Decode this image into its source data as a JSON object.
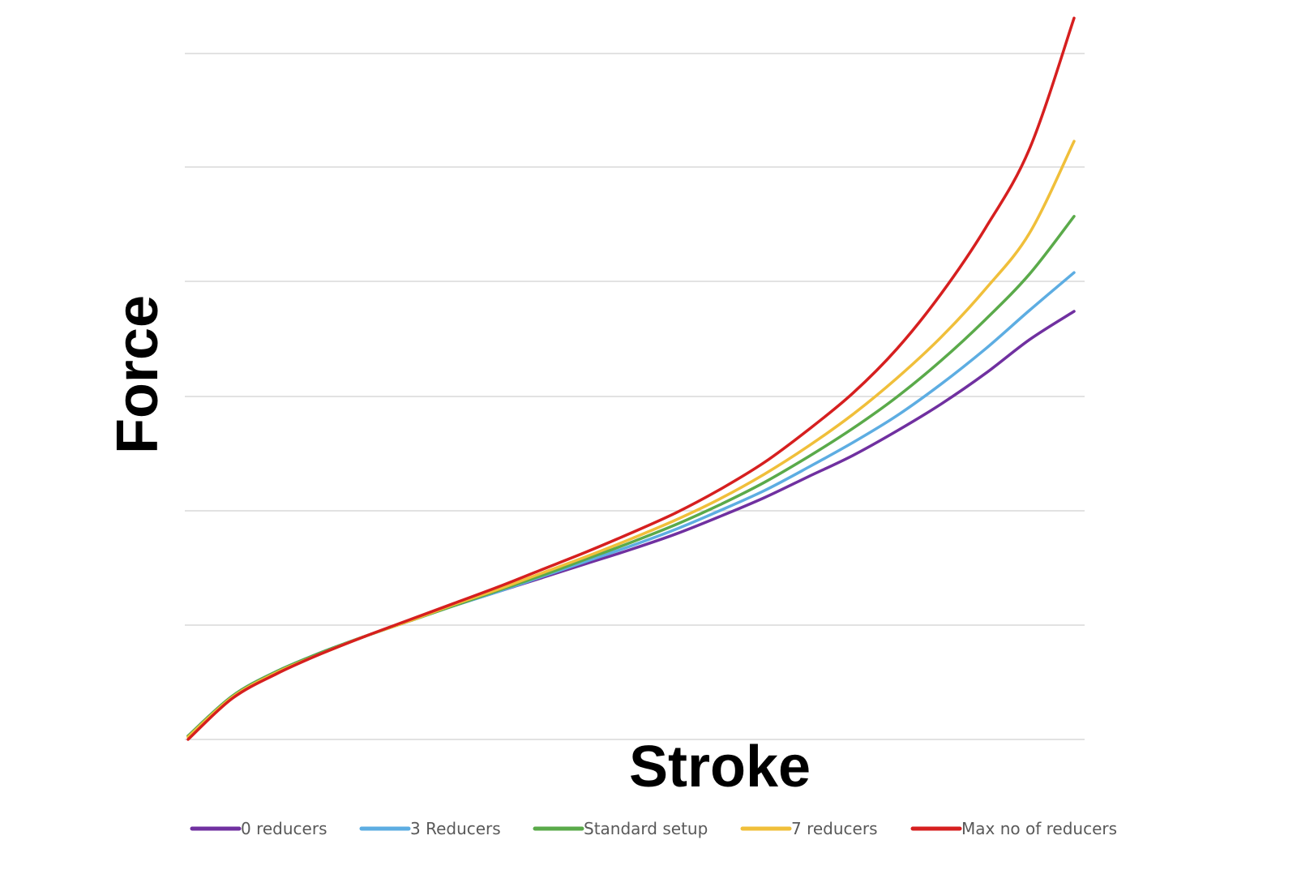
{
  "chart_data": {
    "type": "line",
    "title": "",
    "xlabel": "Stroke",
    "ylabel": "Force",
    "x": [
      0,
      5,
      10,
      15,
      20,
      25,
      30,
      35,
      40,
      45,
      50,
      55,
      60,
      65,
      70,
      75,
      80,
      85,
      90,
      95,
      100
    ],
    "xlim": [
      0,
      100
    ],
    "ylim": [
      0,
      6
    ],
    "grid": true,
    "legend_position": "bottom",
    "series": [
      {
        "name": "0 reducers",
        "color": "#7030a0",
        "values": [
          0.03,
          0.37,
          0.58,
          0.74,
          0.88,
          1.01,
          1.14,
          1.26,
          1.38,
          1.5,
          1.62,
          1.75,
          1.9,
          2.06,
          2.24,
          2.42,
          2.63,
          2.86,
          3.12,
          3.41,
          3.65
        ]
      },
      {
        "name": "3 Reducers",
        "color": "#5dade2",
        "values": [
          0.03,
          0.37,
          0.58,
          0.74,
          0.88,
          1.01,
          1.14,
          1.26,
          1.39,
          1.52,
          1.65,
          1.79,
          1.95,
          2.12,
          2.32,
          2.53,
          2.76,
          3.03,
          3.33,
          3.66,
          3.98
        ]
      },
      {
        "name": "Standard setup",
        "color": "#5aaa4a",
        "values": [
          0.03,
          0.37,
          0.58,
          0.74,
          0.88,
          1.01,
          1.14,
          1.27,
          1.4,
          1.54,
          1.68,
          1.83,
          2.0,
          2.19,
          2.41,
          2.65,
          2.92,
          3.23,
          3.58,
          3.97,
          4.46
        ]
      },
      {
        "name": "7 reducers",
        "color": "#f0bf3a",
        "values": [
          0.02,
          0.36,
          0.57,
          0.73,
          0.88,
          1.01,
          1.15,
          1.28,
          1.42,
          1.56,
          1.71,
          1.87,
          2.05,
          2.26,
          2.5,
          2.77,
          3.08,
          3.43,
          3.84,
          4.32,
          5.1
        ]
      },
      {
        "name": "Max no of reducers",
        "color": "#d61f1f",
        "values": [
          0.0,
          0.35,
          0.56,
          0.73,
          0.88,
          1.02,
          1.16,
          1.3,
          1.45,
          1.6,
          1.76,
          1.93,
          2.13,
          2.36,
          2.64,
          2.95,
          3.33,
          3.8,
          4.36,
          5.04,
          6.15
        ]
      }
    ]
  }
}
